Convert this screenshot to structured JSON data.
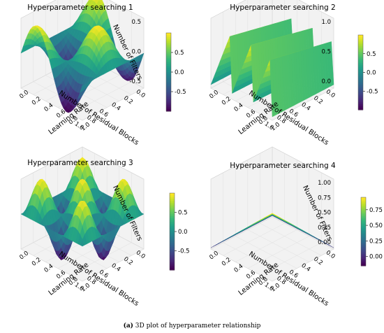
{
  "caption": {
    "label": "(a)",
    "text": "3D plot of hyperparameter relationship"
  },
  "colormap": "viridis",
  "chart_data": [
    {
      "type": "surface",
      "title": "Hyperparameter searching 1",
      "xlabel": "Learning Rate",
      "ylabel": "Number of Residual Blocks",
      "zlabel": "Number of Filters",
      "x_ticks": [
        "0.0",
        "0.2",
        "0.4",
        "0.6",
        "0.8",
        "1.0"
      ],
      "y_ticks": [
        "0.0",
        "0.2",
        "0.4",
        "0.6",
        "0.8",
        "1.0"
      ],
      "z_ticks": [
        "0.5",
        "0.0",
        "-0.5"
      ],
      "zlim": [
        -1,
        1
      ],
      "colorbar_ticks": [
        "0.5",
        "0.0",
        "-0.5"
      ],
      "colorbar_range": [
        -1,
        1
      ],
      "function": "sin(2*pi*x)*cos(2*pi*y)"
    },
    {
      "type": "surface",
      "title": "Hyperparameter searching 2",
      "xlabel": "Learning Rate",
      "ylabel": "Number of Residual Blocks",
      "zlabel": "",
      "x_ticks": [
        "0.0",
        "0.2",
        "0.4",
        "0.6",
        "0.8",
        "1.0"
      ],
      "y_ticks": [
        "0.0",
        "0.2",
        "0.4",
        "0.6",
        "0.8",
        "1.0"
      ],
      "z_ticks": [
        "1.0",
        "0.5",
        "0.0"
      ],
      "zlim": [
        0,
        1
      ],
      "colorbar_ticks": [
        "0.5",
        "0.0",
        "-0.5"
      ],
      "colorbar_range": [
        -1,
        1
      ],
      "function": "sawtooth ridges along learning rate"
    },
    {
      "type": "surface",
      "title": "Hyperparameter searching 3",
      "xlabel": "Learning Rate",
      "ylabel": "Number of Residual Blocks",
      "zlabel": "Number of Filters",
      "x_ticks": [
        "0.0",
        "0.2",
        "0.4",
        "0.6",
        "0.8",
        "1.0"
      ],
      "y_ticks": [
        "0.0",
        "0.2",
        "0.4",
        "0.6",
        "0.8",
        "1.0"
      ],
      "z_ticks": [],
      "zlim": [
        -1,
        1
      ],
      "colorbar_ticks": [
        "0.5",
        "0.0",
        "-0.5"
      ],
      "colorbar_range": [
        -1,
        1
      ],
      "function": "sin(3*pi*x)*sin(3*pi*y)"
    },
    {
      "type": "surface",
      "title": "Hyperparameter searching 4",
      "xlabel": "Learning Rate",
      "ylabel": "Number of Residual Blocks",
      "zlabel": "Number of Filters",
      "x_ticks": [
        "0.0",
        "0.2",
        "0.4",
        "0.6",
        "0.8",
        "1.0"
      ],
      "y_ticks": [
        "0.0",
        "0.2",
        "0.4",
        "0.6",
        "0.8",
        "1.0"
      ],
      "z_ticks": [
        "1.00",
        "0.75",
        "0.50",
        "0.25",
        "0.00"
      ],
      "zlim": [
        0,
        1.05
      ],
      "colorbar_ticks": [
        "0.75",
        "0.50",
        "0.25",
        "0.00"
      ],
      "colorbar_range": [
        -0.15,
        0.95
      ],
      "function": "pyramid peak at far corner"
    }
  ]
}
